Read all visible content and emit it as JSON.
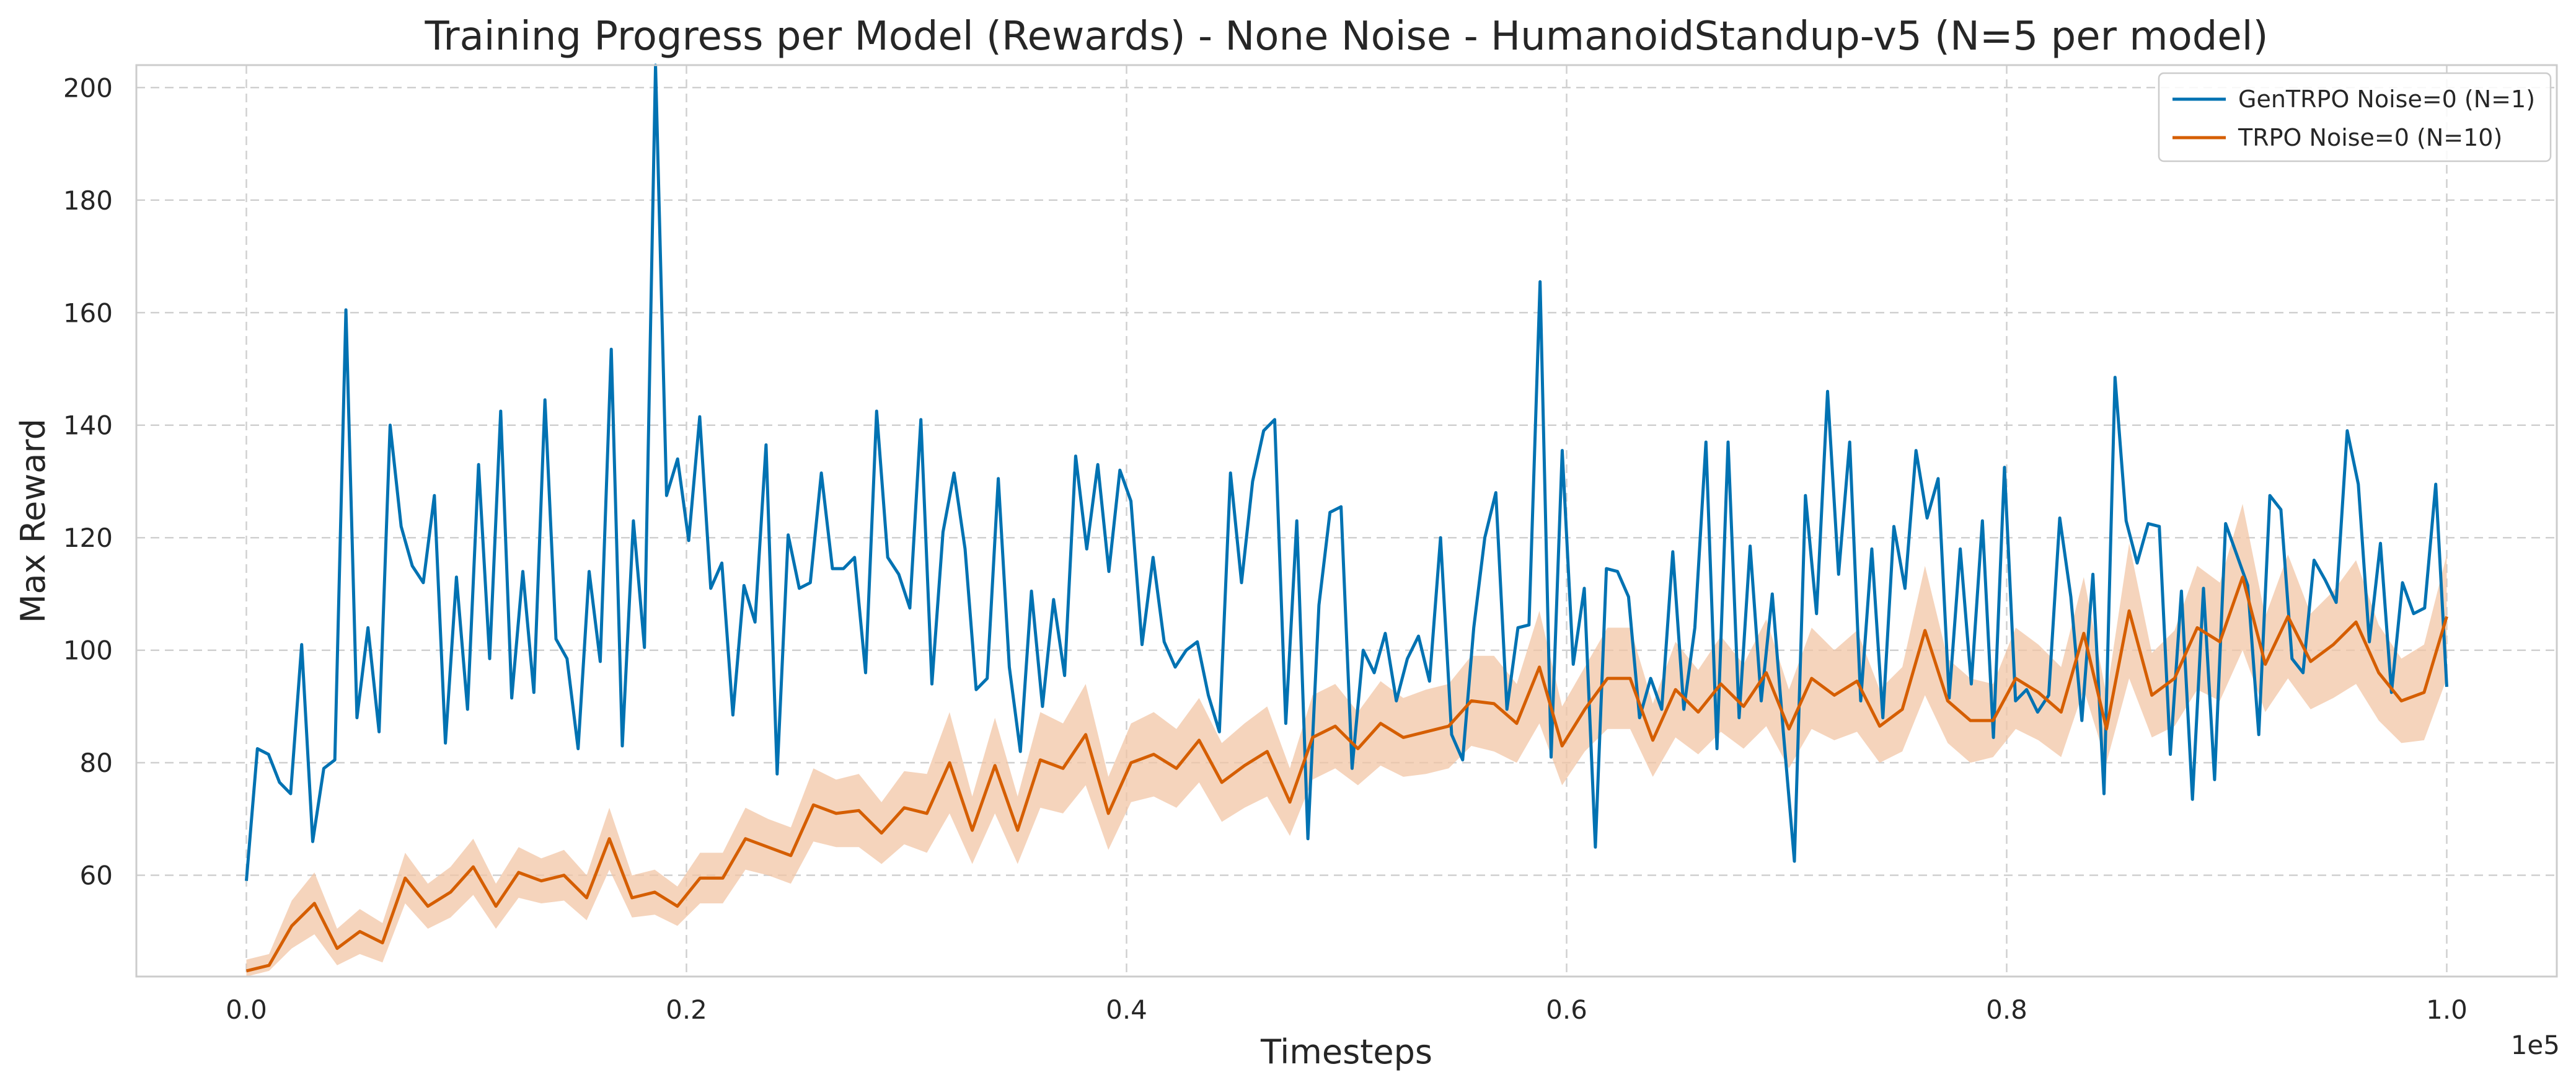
{
  "chart_data": {
    "type": "line",
    "title": "Training Progress per Model (Rewards) - None Noise - HumanoidStandup-v5 (N=5 per model)",
    "xlabel": "Timesteps",
    "ylabel": "Max Reward",
    "x_multiplier_label": "1e5",
    "xlim": [
      -0.05,
      1.05
    ],
    "ylim": [
      42,
      204
    ],
    "x_ticks": [
      0.0,
      0.2,
      0.4,
      0.6,
      0.8,
      1.0
    ],
    "x_tick_labels": [
      "0.0",
      "0.2",
      "0.4",
      "0.6",
      "0.8",
      "1.0"
    ],
    "y_ticks": [
      60,
      80,
      100,
      120,
      140,
      160,
      180,
      200
    ],
    "y_tick_labels": [
      "60",
      "80",
      "100",
      "120",
      "140",
      "160",
      "180",
      "200"
    ],
    "grid": true,
    "legend_position": "top-right",
    "series": [
      {
        "name": "GenTRPO Noise=0 (N=1)",
        "color": "#0072b2",
        "x_start": 0.0,
        "x_end": 1.0,
        "values": [
          59,
          82.5,
          81.5,
          76.5,
          74.5,
          101,
          66,
          79,
          80.5,
          160.5,
          88,
          104,
          85.5,
          140,
          122,
          115,
          112,
          127.5,
          83.5,
          113,
          89.5,
          133,
          98.5,
          142.5,
          91.5,
          114,
          92.5,
          144.5,
          102,
          98.5,
          82.5,
          114,
          98,
          153.5,
          83,
          123,
          100.5,
          204,
          127.5,
          134,
          119.5,
          141.5,
          111,
          115.5,
          88.5,
          111.5,
          105,
          136.5,
          78,
          120.5,
          111,
          112,
          131.5,
          114.5,
          114.5,
          116.5,
          96,
          142.5,
          116.5,
          113.5,
          107.5,
          141,
          94,
          121,
          131.5,
          118,
          93,
          95,
          130.5,
          97,
          82,
          110.5,
          90,
          109,
          95.5,
          134.5,
          118,
          133,
          114,
          132,
          126.5,
          101,
          116.5,
          101.5,
          97,
          100,
          101.5,
          92,
          85.5,
          131.5,
          112,
          130,
          139,
          141,
          87,
          123,
          66.5,
          108,
          124.5,
          125.5,
          79,
          100,
          96,
          103,
          91,
          98.5,
          102.5,
          94.5,
          120,
          85,
          80.5,
          104,
          120,
          128,
          89.5,
          104,
          104.5,
          165.5,
          81,
          135.5,
          97.5,
          111,
          65,
          114.5,
          114,
          109.5,
          88,
          95,
          89.5,
          117.5,
          89.5,
          104,
          137,
          82.5,
          137,
          88,
          118.5,
          91,
          110,
          85.5,
          62.5,
          127.5,
          106.5,
          146,
          113.5,
          137,
          91,
          118,
          88,
          122,
          111,
          135.5,
          123.5,
          130.5,
          91.5,
          118,
          94,
          123,
          84.5,
          132.5,
          91,
          93,
          89,
          92,
          123.5,
          109.5,
          87.5,
          113.5,
          74.5,
          148.5,
          123,
          115.5,
          122.5,
          122,
          81.5,
          110.5,
          73.5,
          111,
          77,
          122.5,
          117,
          111.5,
          85,
          127.5,
          125,
          98.5,
          96,
          116,
          112.5,
          108.5,
          139,
          129.5,
          101.5,
          119,
          92.5,
          112,
          106.5,
          107.5,
          129.5,
          93.5
        ]
      },
      {
        "name": "TRPO Noise=0 (N=10)",
        "color": "#d55e00",
        "band_color": "#f2c5a5",
        "x_start": 0.0,
        "x_end": 1.0,
        "values": [
          43,
          44,
          51,
          55,
          47,
          50,
          48,
          59.5,
          54.5,
          57,
          61.5,
          54.5,
          60.5,
          59,
          60,
          56,
          66.5,
          56,
          57,
          54.5,
          59.5,
          59.5,
          66.5,
          65,
          63.5,
          72.5,
          71,
          71.5,
          67.5,
          72,
          71,
          80,
          68,
          79.5,
          68,
          80.5,
          79,
          85,
          71,
          80,
          81.5,
          79,
          84,
          76.5,
          79.5,
          82,
          73,
          84.5,
          86.5,
          82.5,
          87,
          84.5,
          85.5,
          86.5,
          91,
          90.5,
          87,
          97,
          83,
          89.5,
          95,
          95,
          84,
          93,
          89,
          94,
          90,
          96,
          86,
          95,
          92,
          94.5,
          86.5,
          89.5,
          103.5,
          91,
          87.5,
          87.5,
          95,
          92.5,
          89,
          103,
          86,
          107,
          92,
          95,
          104,
          101.5,
          113,
          97.5,
          106,
          98,
          101,
          105,
          96,
          91,
          92.5,
          106
        ],
        "lower": [
          42,
          43,
          47,
          49.5,
          44,
          46,
          44.5,
          55,
          50.5,
          52.5,
          56.5,
          50.5,
          56,
          55,
          55.5,
          52,
          61,
          52.5,
          53,
          51,
          55,
          55,
          61,
          60,
          58.5,
          66,
          65,
          65,
          62,
          65.5,
          64,
          71,
          62,
          71,
          62,
          72,
          71,
          76,
          64.5,
          73,
          74,
          72,
          76.5,
          69.5,
          72,
          74,
          67,
          77,
          79,
          76,
          79.5,
          77.5,
          78,
          79,
          83,
          82,
          80,
          87,
          76,
          82,
          86,
          86,
          77.5,
          84.5,
          81.5,
          85.5,
          82.5,
          86.5,
          79,
          86,
          84,
          85.5,
          80,
          82,
          92,
          83.5,
          80,
          81,
          86,
          84,
          81,
          93,
          80,
          95,
          84.5,
          86.5,
          93,
          91,
          100,
          89,
          95,
          89.5,
          91.5,
          94,
          87.5,
          83.5,
          84,
          95
        ],
        "upper": [
          45,
          46,
          55.5,
          60.5,
          50.5,
          54,
          51.5,
          64,
          58.5,
          61.5,
          66.5,
          58.5,
          65,
          63,
          64.5,
          60,
          72,
          60,
          61,
          58,
          64,
          64,
          72,
          70,
          68.5,
          79,
          77,
          78,
          73,
          78.5,
          78,
          89,
          74,
          88,
          74,
          89,
          87,
          94,
          77.5,
          87,
          89,
          86,
          91.5,
          83.5,
          87,
          90,
          79,
          92,
          94,
          89,
          94.5,
          91.5,
          93,
          94,
          99,
          99,
          94,
          107,
          90,
          97,
          104,
          104,
          90.5,
          101.5,
          96.5,
          102.5,
          97.5,
          105.5,
          93,
          104,
          100,
          103.5,
          93,
          97,
          115,
          98.5,
          95,
          94,
          104,
          101,
          97,
          113,
          92,
          119,
          99.5,
          103.5,
          115,
          112,
          126,
          106,
          117,
          106.5,
          110.5,
          116,
          104.5,
          98.5,
          101,
          117
        ]
      }
    ]
  }
}
